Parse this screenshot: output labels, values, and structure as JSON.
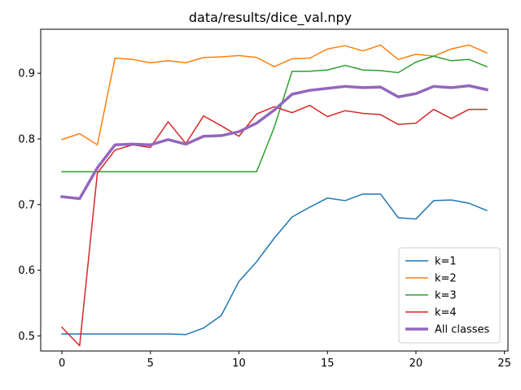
{
  "chart_data": {
    "type": "line",
    "title": "data/results/dice_val.npy",
    "xlabel": "",
    "ylabel": "",
    "xlim": [
      -1.2,
      25.2
    ],
    "ylim": [
      0.477,
      0.967
    ],
    "xticks": [
      0,
      5,
      10,
      15,
      20,
      25
    ],
    "yticks": [
      0.5,
      0.6,
      0.7,
      0.8,
      0.9
    ],
    "grid": false,
    "legend_position": "lower-right",
    "x": [
      0,
      1,
      2,
      3,
      4,
      5,
      6,
      7,
      8,
      9,
      10,
      11,
      12,
      13,
      14,
      15,
      16,
      17,
      18,
      19,
      20,
      21,
      22,
      23,
      24
    ],
    "series": [
      {
        "name": "k=1",
        "color": "#1f77b4",
        "width": 1.5,
        "values": [
          0.503,
          0.503,
          0.503,
          0.503,
          0.503,
          0.503,
          0.503,
          0.502,
          0.512,
          0.531,
          0.583,
          0.613,
          0.649,
          0.681,
          0.696,
          0.71,
          0.706,
          0.716,
          0.716,
          0.68,
          0.678,
          0.706,
          0.707,
          0.702,
          0.691
        ]
      },
      {
        "name": "k=2",
        "color": "#ff7f0e",
        "width": 1.5,
        "values": [
          0.799,
          0.808,
          0.791,
          0.923,
          0.921,
          0.916,
          0.919,
          0.916,
          0.924,
          0.925,
          0.927,
          0.924,
          0.91,
          0.922,
          0.923,
          0.937,
          0.942,
          0.934,
          0.943,
          0.921,
          0.929,
          0.926,
          0.937,
          0.943,
          0.931
        ]
      },
      {
        "name": "k=3",
        "color": "#2ca02c",
        "width": 1.5,
        "values": [
          0.75,
          0.75,
          0.75,
          0.75,
          0.75,
          0.75,
          0.75,
          0.75,
          0.75,
          0.75,
          0.75,
          0.75,
          0.818,
          0.903,
          0.903,
          0.905,
          0.912,
          0.905,
          0.904,
          0.901,
          0.917,
          0.926,
          0.919,
          0.921,
          0.91
        ]
      },
      {
        "name": "k=4",
        "color": "#d62728",
        "width": 1.5,
        "values": [
          0.513,
          0.485,
          0.748,
          0.783,
          0.791,
          0.787,
          0.826,
          0.793,
          0.835,
          0.82,
          0.804,
          0.838,
          0.849,
          0.84,
          0.851,
          0.834,
          0.843,
          0.839,
          0.837,
          0.822,
          0.824,
          0.845,
          0.831,
          0.845,
          0.845
        ]
      },
      {
        "name": "All classes",
        "color": "#9467bd",
        "width": 3.5,
        "values": [
          0.712,
          0.709,
          0.756,
          0.791,
          0.792,
          0.791,
          0.799,
          0.792,
          0.804,
          0.805,
          0.811,
          0.824,
          0.844,
          0.868,
          0.874,
          0.877,
          0.88,
          0.878,
          0.879,
          0.864,
          0.869,
          0.88,
          0.878,
          0.881,
          0.875
        ]
      }
    ]
  }
}
